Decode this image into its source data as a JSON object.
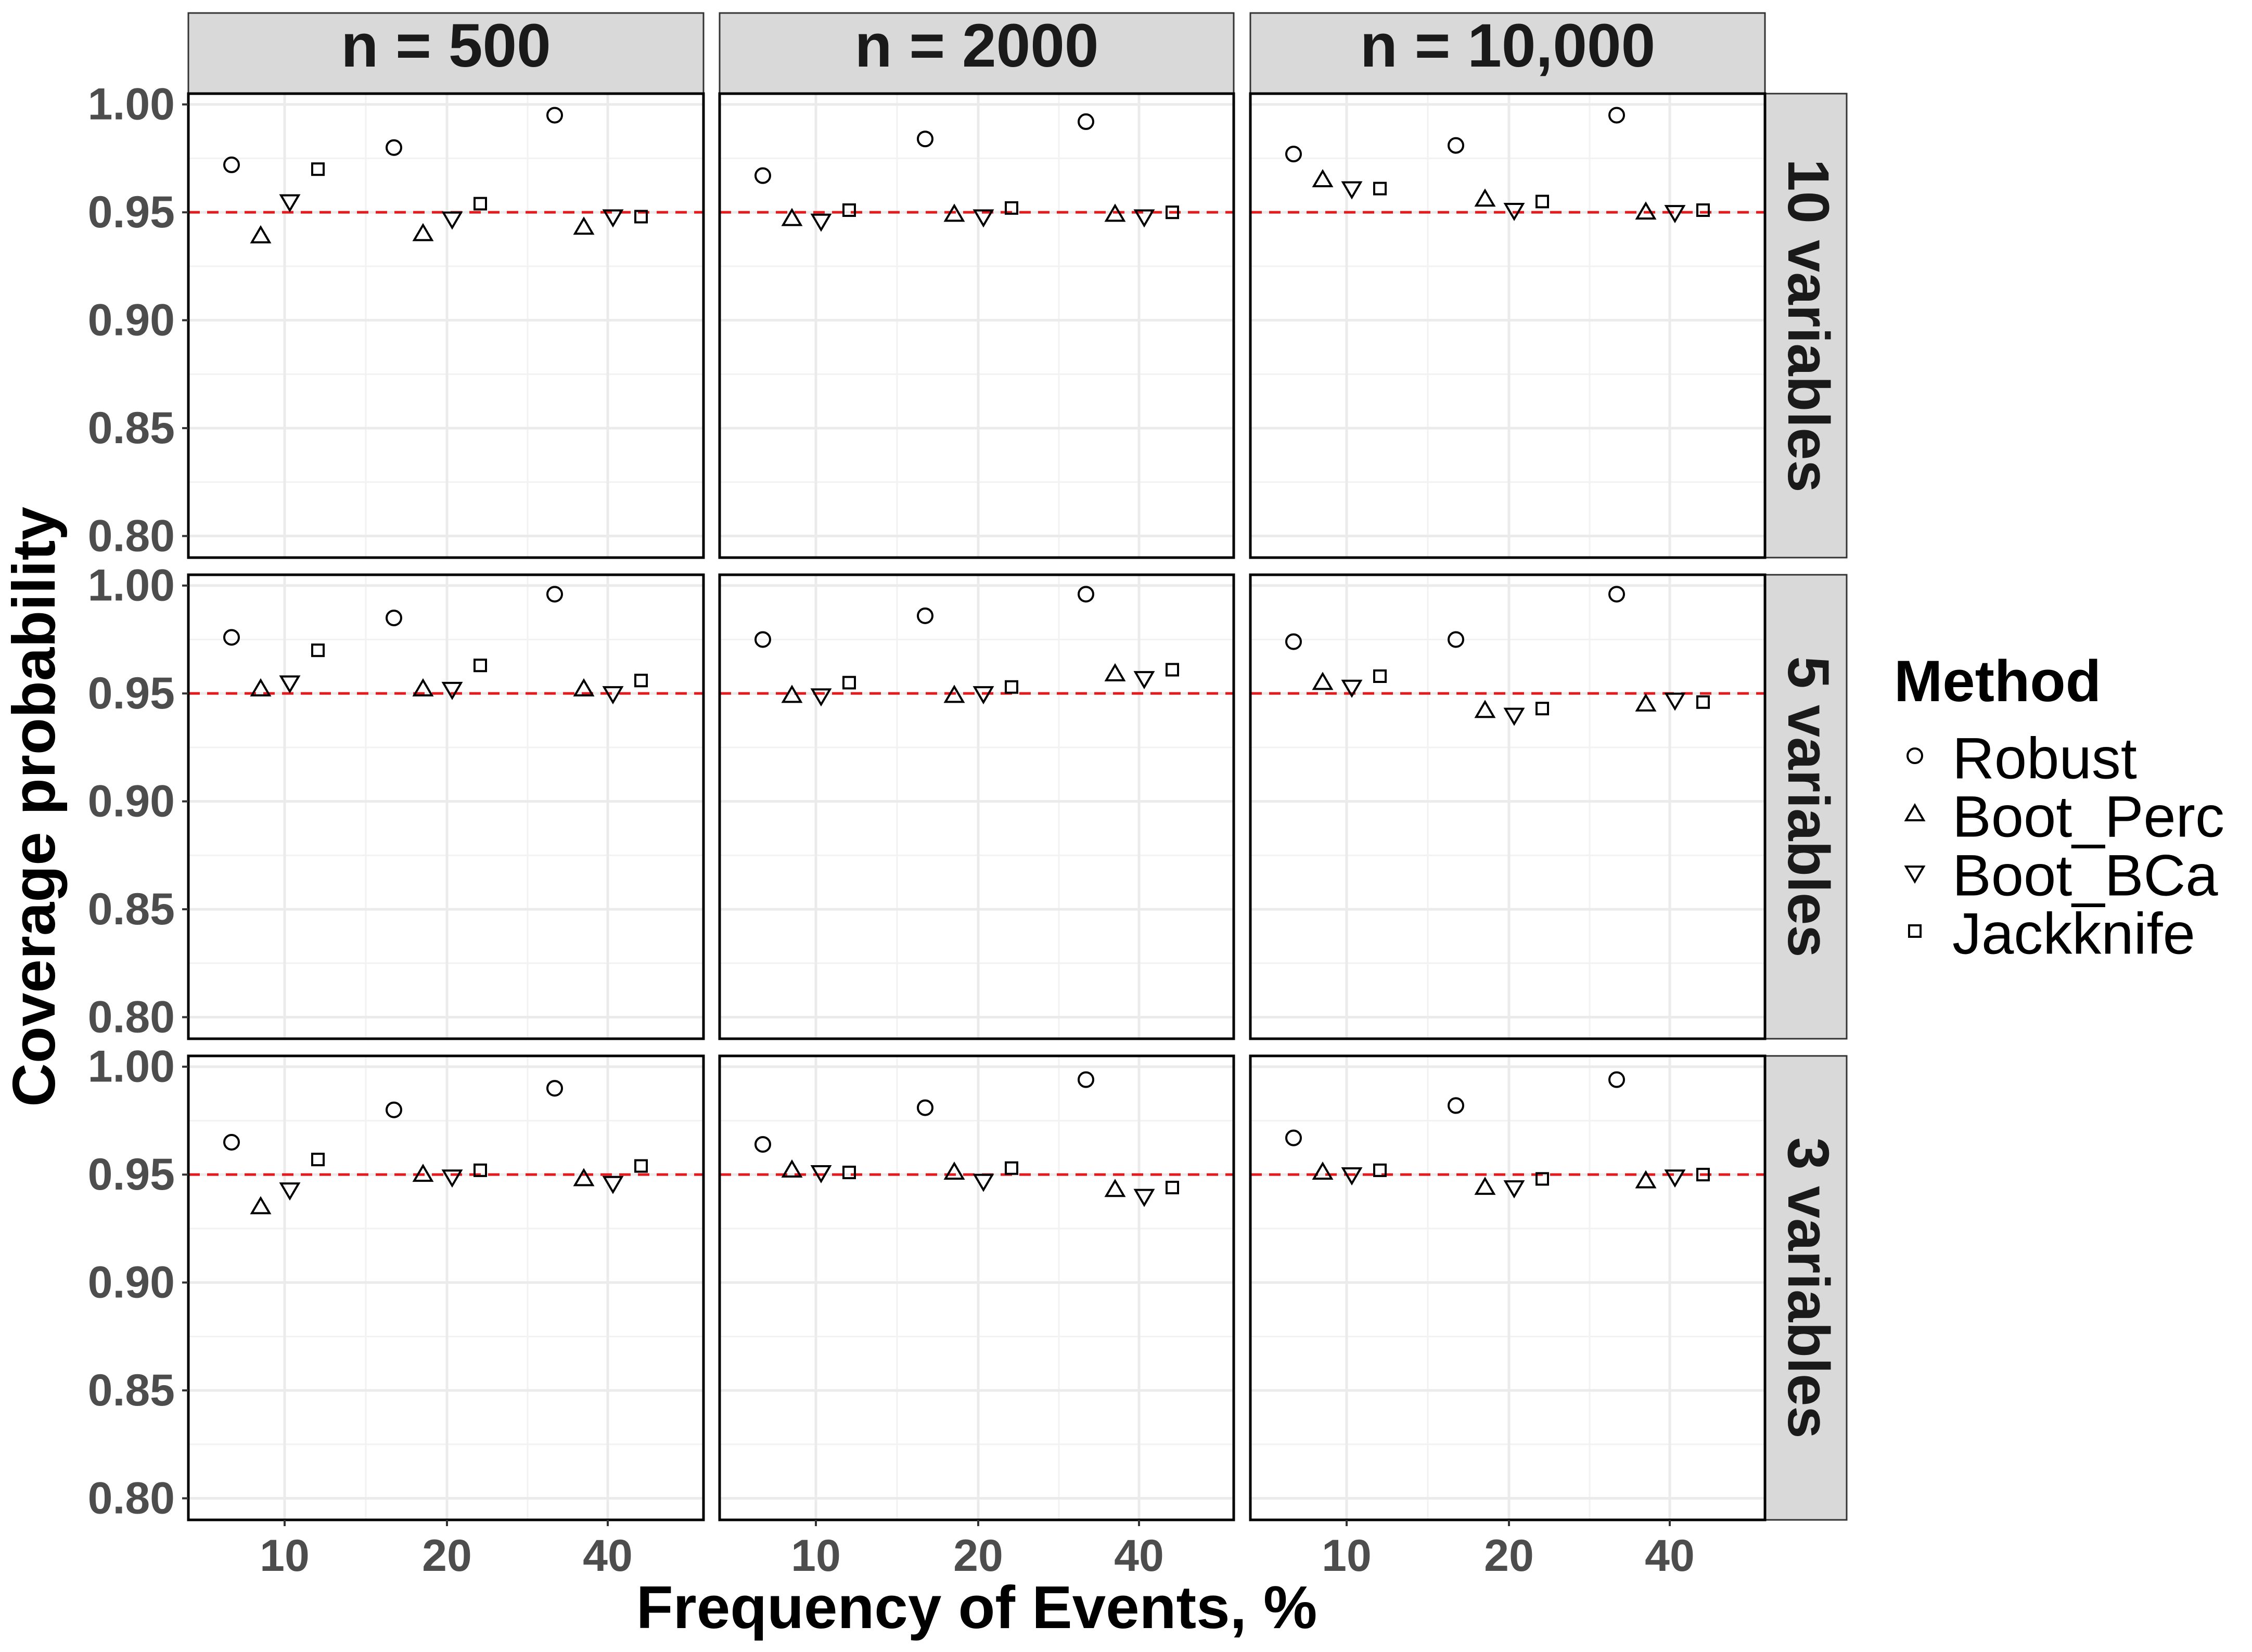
{
  "chart_data": {
    "type": "scatter",
    "facet_cols": [
      "n = 500",
      "n = 2000",
      "n = 10,000"
    ],
    "facet_rows": [
      "10 variables",
      "5 variables",
      "3 variables"
    ],
    "xlabel": "Frequency of Events, %",
    "ylabel": "Coverage probability",
    "x_ticks": [
      "10",
      "20",
      "40"
    ],
    "y_ticks": [
      "1.00",
      "0.95",
      "0.90",
      "0.85",
      "0.80"
    ],
    "ylim": [
      0.79,
      1.005
    ],
    "reference_line": 0.95,
    "reference_color": "#e41a1c",
    "legend_title": "Method",
    "methods": [
      "Robust",
      "Boot_Perc",
      "Boot_BCa",
      "Jackknife"
    ],
    "shapes": [
      "circle",
      "triangle-up",
      "triangle-down",
      "square"
    ],
    "panels": [
      {
        "col": "n = 500",
        "row": "10 variables",
        "groups": [
          {
            "x": "10",
            "values": [
              0.972,
              0.939,
              0.955,
              0.97
            ]
          },
          {
            "x": "20",
            "values": [
              0.98,
              0.94,
              0.947,
              0.954
            ]
          },
          {
            "x": "40",
            "values": [
              0.995,
              0.943,
              0.948,
              0.948
            ]
          }
        ]
      },
      {
        "col": "n = 2000",
        "row": "10 variables",
        "groups": [
          {
            "x": "10",
            "values": [
              0.967,
              0.947,
              0.946,
              0.951
            ]
          },
          {
            "x": "20",
            "values": [
              0.984,
              0.949,
              0.948,
              0.952
            ]
          },
          {
            "x": "40",
            "values": [
              0.992,
              0.949,
              0.948,
              0.95
            ]
          }
        ]
      },
      {
        "col": "n = 10,000",
        "row": "10 variables",
        "groups": [
          {
            "x": "10",
            "values": [
              0.977,
              0.965,
              0.961,
              0.961
            ]
          },
          {
            "x": "20",
            "values": [
              0.981,
              0.956,
              0.951,
              0.955
            ]
          },
          {
            "x": "40",
            "values": [
              0.995,
              0.95,
              0.95,
              0.951
            ]
          }
        ]
      },
      {
        "col": "n = 500",
        "row": "5 variables",
        "groups": [
          {
            "x": "10",
            "values": [
              0.976,
              0.952,
              0.955,
              0.97
            ]
          },
          {
            "x": "20",
            "values": [
              0.985,
              0.952,
              0.952,
              0.963
            ]
          },
          {
            "x": "40",
            "values": [
              0.996,
              0.952,
              0.95,
              0.956
            ]
          }
        ]
      },
      {
        "col": "n = 2000",
        "row": "5 variables",
        "groups": [
          {
            "x": "10",
            "values": [
              0.975,
              0.949,
              0.949,
              0.955
            ]
          },
          {
            "x": "20",
            "values": [
              0.986,
              0.949,
              0.95,
              0.953
            ]
          },
          {
            "x": "40",
            "values": [
              0.996,
              0.959,
              0.957,
              0.961
            ]
          }
        ]
      },
      {
        "col": "n = 10,000",
        "row": "5 variables",
        "groups": [
          {
            "x": "10",
            "values": [
              0.974,
              0.955,
              0.953,
              0.958
            ]
          },
          {
            "x": "20",
            "values": [
              0.975,
              0.942,
              0.94,
              0.943
            ]
          },
          {
            "x": "40",
            "values": [
              0.996,
              0.945,
              0.947,
              0.946
            ]
          }
        ]
      },
      {
        "col": "n = 500",
        "row": "3 variables",
        "groups": [
          {
            "x": "10",
            "values": [
              0.965,
              0.935,
              0.943,
              0.957
            ]
          },
          {
            "x": "20",
            "values": [
              0.98,
              0.95,
              0.949,
              0.952
            ]
          },
          {
            "x": "40",
            "values": [
              0.99,
              0.948,
              0.946,
              0.954
            ]
          }
        ]
      },
      {
        "col": "n = 2000",
        "row": "3 variables",
        "groups": [
          {
            "x": "10",
            "values": [
              0.964,
              0.952,
              0.951,
              0.951
            ]
          },
          {
            "x": "20",
            "values": [
              0.981,
              0.951,
              0.947,
              0.953
            ]
          },
          {
            "x": "40",
            "values": [
              0.994,
              0.943,
              0.94,
              0.944
            ]
          }
        ]
      },
      {
        "col": "n = 10,000",
        "row": "3 variables",
        "groups": [
          {
            "x": "10",
            "values": [
              0.967,
              0.951,
              0.95,
              0.952
            ]
          },
          {
            "x": "20",
            "values": [
              0.982,
              0.944,
              0.944,
              0.948
            ]
          },
          {
            "x": "40",
            "values": [
              0.994,
              0.947,
              0.949,
              0.95
            ]
          }
        ]
      }
    ]
  }
}
